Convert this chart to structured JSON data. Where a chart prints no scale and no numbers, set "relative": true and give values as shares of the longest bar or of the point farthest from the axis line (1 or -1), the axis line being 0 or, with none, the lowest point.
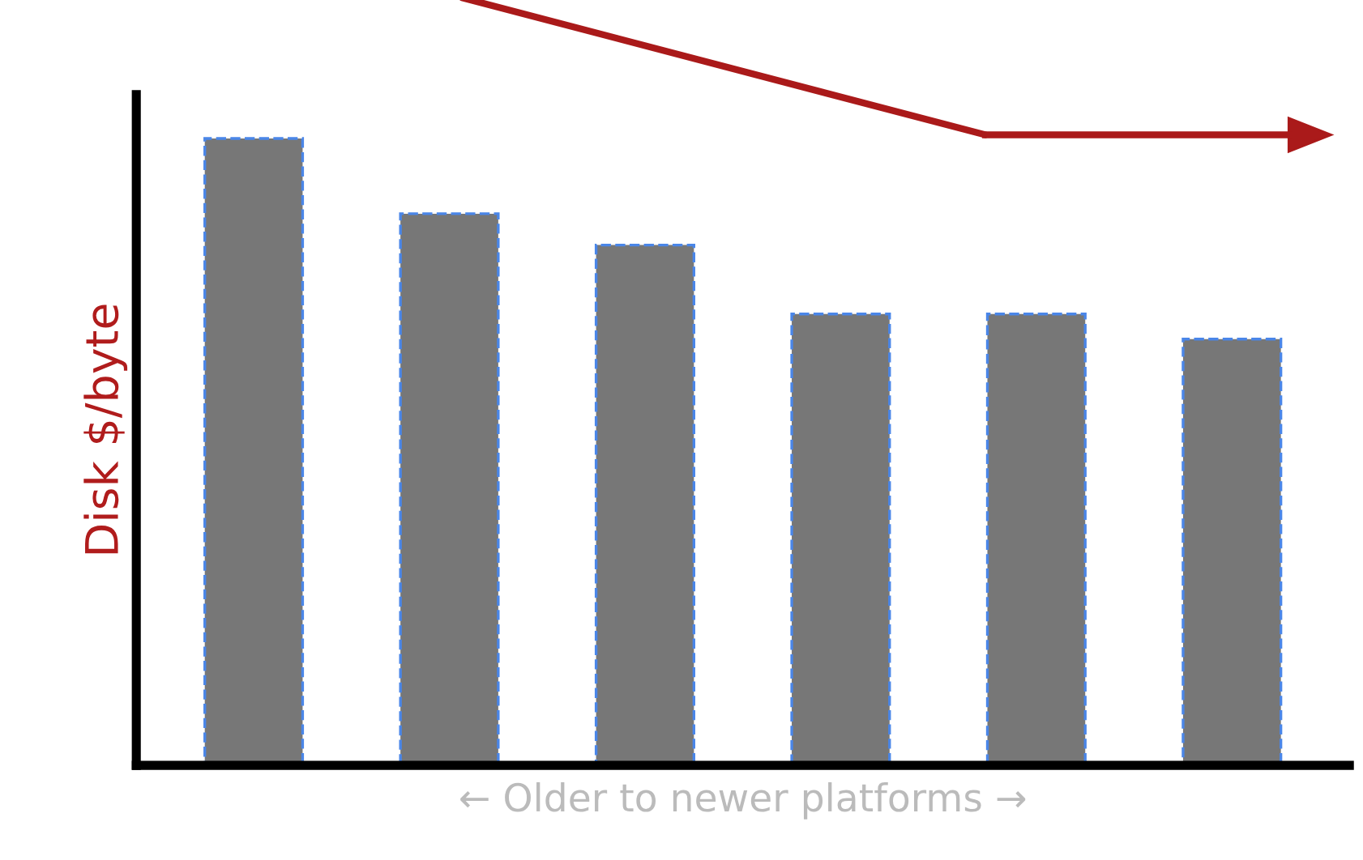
{
  "chart_data": {
    "type": "bar",
    "relative": true,
    "xlabel": "← Older to newer platforms →",
    "ylabel": "Disk $/byte",
    "categories": [
      null,
      null,
      null,
      null,
      null,
      null
    ],
    "values": [
      1,
      0.88,
      0.83,
      0.72,
      0.72,
      0.68
    ],
    "color": "#777777",
    "grid": false,
    "legend": false
  }
}
